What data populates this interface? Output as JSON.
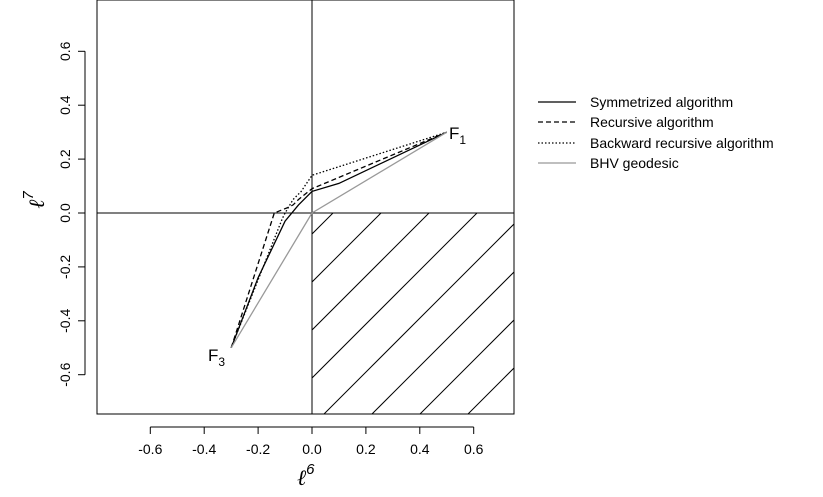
{
  "chart_data": {
    "type": "line",
    "title": "",
    "xlabel": {
      "base": "ℓ",
      "sup": "6"
    },
    "ylabel": {
      "base": "ℓ",
      "sup": "7"
    },
    "xlim": [
      -0.75,
      0.75
    ],
    "ylim": [
      -0.75,
      0.75
    ],
    "xticks": [
      -0.6,
      -0.4,
      -0.2,
      0.0,
      0.2,
      0.4,
      0.6
    ],
    "yticks": [
      -0.6,
      -0.4,
      -0.2,
      0.0,
      0.2,
      0.4,
      0.6
    ],
    "xtick_labels": [
      "-0.6",
      "-0.4",
      "-0.2",
      "0.0",
      "0.2",
      "0.4",
      "0.6"
    ],
    "ytick_labels": [
      "-0.6",
      "-0.4",
      "-0.2",
      "0.0",
      "0.2",
      "0.4",
      "0.6"
    ],
    "grid": false,
    "reference_lines": {
      "x": 0,
      "y": 0
    },
    "hatched_region": {
      "x": [
        0,
        0.75
      ],
      "y": [
        -0.75,
        0
      ]
    },
    "points": [
      {
        "base": "F",
        "sub": "1",
        "x": 0.5,
        "y": 0.3
      },
      {
        "base": "F",
        "sub": "3",
        "x": -0.3,
        "y": -0.5
      }
    ],
    "legend_position": "right",
    "series": [
      {
        "name": "Symmetrized algorithm",
        "style": "solid",
        "color": "#000000",
        "x": [
          -0.3,
          -0.2,
          -0.1,
          -0.05,
          0.0,
          0.1,
          0.5
        ],
        "y": [
          -0.5,
          -0.24,
          -0.03,
          0.03,
          0.08,
          0.11,
          0.3
        ]
      },
      {
        "name": "Recursive algorithm",
        "style": "dashed",
        "color": "#000000",
        "x": [
          -0.3,
          -0.14,
          -0.09,
          -0.07,
          -0.05,
          0.0,
          0.5
        ],
        "y": [
          -0.5,
          0.0,
          0.02,
          0.03,
          0.05,
          0.09,
          0.3
        ]
      },
      {
        "name": "Backward recursive algorithm",
        "style": "dotted",
        "color": "#000000",
        "x": [
          -0.3,
          -0.11,
          -0.1,
          -0.07,
          -0.04,
          0.0,
          0.5
        ],
        "y": [
          -0.5,
          -0.02,
          0.0,
          0.05,
          0.08,
          0.14,
          0.3
        ]
      },
      {
        "name": "BHV geodesic",
        "style": "solid",
        "color": "#999999",
        "x": [
          -0.3,
          0.0,
          0.5
        ],
        "y": [
          -0.5,
          0.0,
          0.3
        ]
      }
    ]
  }
}
